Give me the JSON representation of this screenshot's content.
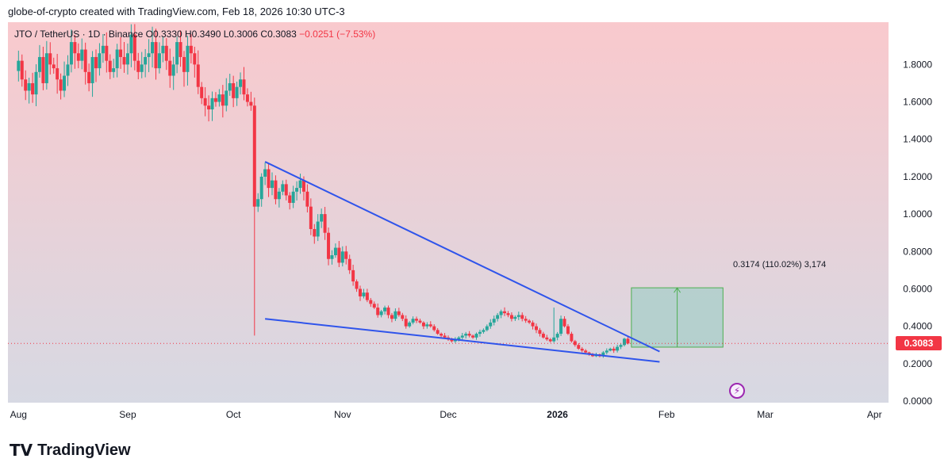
{
  "header": {
    "caption": "globe-of-crypto created with TradingView.com, Feb 18, 2026 10:30 UTC-3"
  },
  "legend": {
    "symbol": "JTO / TetherUS · 1D · Binance",
    "ohlc": "O0.3330 H0.3490 L0.3006 C0.3083",
    "change": "−0.0251 (−7.53%)"
  },
  "last_price": "0.3083",
  "measure": {
    "label": "0.3174 (110.02%) 3,174"
  },
  "brand": {
    "logo": "tv-logo-icon",
    "name": "TradingView"
  },
  "icons": {
    "flash": "lightning-icon"
  },
  "colors": {
    "up": "#26a69a",
    "down": "#f23645",
    "trendline": "#2f54eb",
    "bg_top": "#f9c9cd",
    "bg_bottom": "#d7d9e3",
    "measure_fill": "#a7cdc8",
    "measure_line": "#4caf50"
  },
  "chart_data": {
    "type": "candlestick",
    "title": "JTO / TetherUS · 1D · Binance",
    "xlabel": "",
    "ylabel": "",
    "ylim": [
      0.0,
      1.95
    ],
    "y_ticks": [
      "1.8000",
      "1.6000",
      "1.4000",
      "1.2000",
      "1.0000",
      "0.8000",
      "0.6000",
      "0.4000",
      "0.2000",
      "0.0000"
    ],
    "y_tick_values": [
      1.8,
      1.6,
      1.4,
      1.2,
      1.0,
      0.8,
      0.6,
      0.4,
      0.2,
      0.0
    ],
    "x_ticks": [
      "Aug",
      "Sep",
      "Oct",
      "Nov",
      "Dec",
      "2026",
      "Feb",
      "Mar",
      "Apr"
    ],
    "x_tick_days": [
      0,
      31,
      61,
      92,
      122,
      153,
      184,
      212,
      243
    ],
    "x_range_days": [
      -3,
      247
    ],
    "last_close": 0.3083,
    "closes": [
      1.82,
      1.72,
      1.66,
      1.7,
      1.64,
      1.76,
      1.84,
      1.7,
      1.86,
      1.8,
      1.78,
      1.72,
      1.66,
      1.74,
      1.8,
      1.92,
      1.86,
      1.82,
      1.88,
      1.76,
      1.7,
      1.84,
      1.78,
      1.86,
      1.9,
      1.82,
      1.76,
      1.78,
      1.88,
      1.84,
      1.8,
      1.86,
      1.96,
      1.82,
      1.76,
      1.8,
      1.84,
      1.86,
      1.92,
      1.78,
      1.86,
      1.9,
      1.82,
      1.74,
      1.8,
      1.92,
      1.84,
      1.76,
      1.9,
      1.86,
      1.8,
      1.68,
      1.62,
      1.58,
      1.56,
      1.62,
      1.6,
      1.64,
      1.58,
      1.66,
      1.7,
      1.62,
      1.68,
      1.72,
      1.64,
      1.6,
      1.58,
      1.04,
      1.08,
      1.2,
      1.24,
      1.14,
      1.18,
      1.08,
      1.12,
      1.16,
      1.1,
      1.06,
      1.12,
      1.14,
      1.18,
      1.12,
      1.04,
      0.92,
      0.88,
      0.96,
      1.0,
      0.9,
      0.76,
      0.78,
      0.82,
      0.74,
      0.8,
      0.76,
      0.7,
      0.64,
      0.6,
      0.56,
      0.58,
      0.54,
      0.52,
      0.5,
      0.46,
      0.48,
      0.5,
      0.46,
      0.44,
      0.48,
      0.46,
      0.44,
      0.4,
      0.42,
      0.44,
      0.43,
      0.42,
      0.4,
      0.41,
      0.4,
      0.38,
      0.36,
      0.35,
      0.34,
      0.33,
      0.32,
      0.33,
      0.34,
      0.35,
      0.36,
      0.35,
      0.34,
      0.36,
      0.37,
      0.38,
      0.4,
      0.42,
      0.44,
      0.46,
      0.48,
      0.47,
      0.46,
      0.44,
      0.45,
      0.46,
      0.44,
      0.43,
      0.42,
      0.4,
      0.38,
      0.36,
      0.34,
      0.33,
      0.32,
      0.34,
      0.36,
      0.44,
      0.4,
      0.36,
      0.32,
      0.3,
      0.28,
      0.27,
      0.26,
      0.25,
      0.24,
      0.25,
      0.24,
      0.26,
      0.27,
      0.28,
      0.27,
      0.29,
      0.3,
      0.3334,
      0.3083
    ],
    "series": [
      {
        "name": "Upper trendline",
        "points": [
          [
            70,
            1.28
          ],
          [
            182,
            0.265
          ]
        ]
      },
      {
        "name": "Lower trendline",
        "points": [
          [
            70,
            0.44
          ],
          [
            182,
            0.21
          ]
        ]
      }
    ],
    "measure_range": {
      "from": 0.2884,
      "to": 0.6058,
      "day_start": 174,
      "day_end": 200,
      "label": "0.3174 (110.02%) 3,174"
    }
  }
}
